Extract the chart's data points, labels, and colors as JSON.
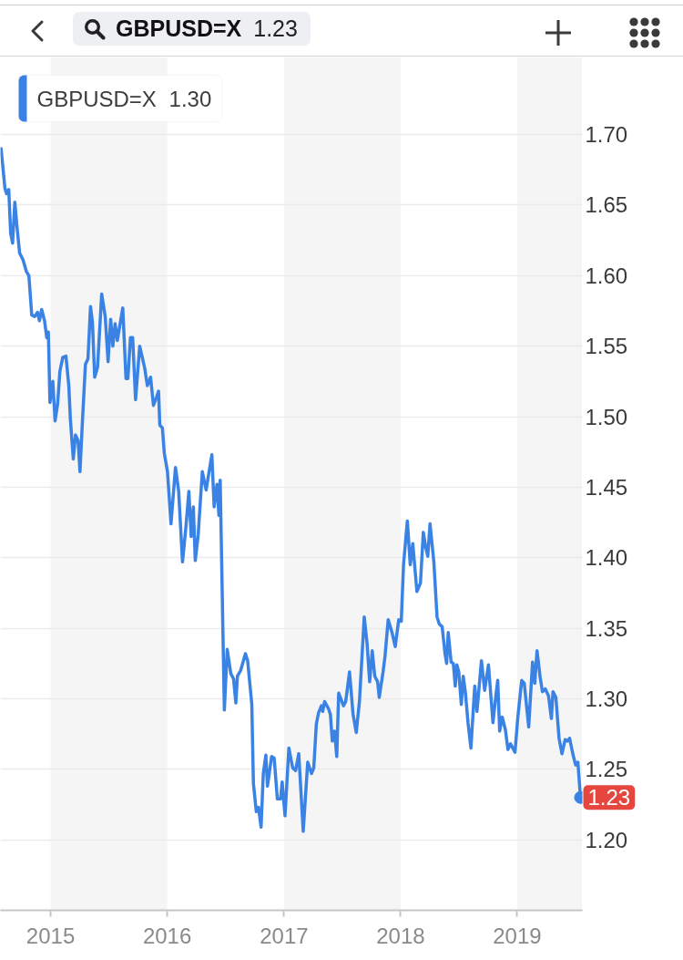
{
  "chart_data": {
    "type": "line",
    "title": "GBPUSD=X",
    "subtitle": "1.23",
    "x": [
      "2014-07-30",
      "2014-08-11",
      "2014-08-16",
      "2014-08-23",
      "2014-08-29",
      "2014-09-04",
      "2014-09-11",
      "2014-09-18",
      "2014-09-26",
      "2014-10-07",
      "2014-10-17",
      "2014-10-25",
      "2014-11-03",
      "2014-11-12",
      "2014-11-21",
      "2014-11-27",
      "2014-12-04",
      "2014-12-13",
      "2014-12-20",
      "2014-12-25",
      "2014-12-30",
      "2015-01-08",
      "2015-01-15",
      "2015-01-23",
      "2015-01-30",
      "2015-02-08",
      "2015-02-18",
      "2015-02-27",
      "2015-03-04",
      "2015-03-13",
      "2015-03-20",
      "2015-03-28",
      "2015-04-03",
      "2015-04-11",
      "2015-04-20",
      "2015-04-28",
      "2015-05-06",
      "2015-05-12",
      "2015-05-19",
      "2015-05-28",
      "2015-06-10",
      "2015-06-21",
      "2015-06-30",
      "2015-07-08",
      "2015-07-15",
      "2015-07-22",
      "2015-07-29",
      "2015-08-06",
      "2015-08-15",
      "2015-08-25",
      "2015-08-31",
      "2015-09-08",
      "2015-09-15",
      "2015-09-24",
      "2015-10-07",
      "2015-10-23",
      "2015-10-31",
      "2015-11-10",
      "2015-11-19",
      "2015-11-29",
      "2015-12-05",
      "2015-12-09",
      "2015-12-17",
      "2015-12-23",
      "2016-01-02",
      "2016-01-13",
      "2016-01-27",
      "2016-02-06",
      "2016-02-18",
      "2016-02-28",
      "2016-03-09",
      "2016-03-16",
      "2016-03-23",
      "2016-03-29",
      "2016-04-07",
      "2016-04-20",
      "2016-05-02",
      "2016-05-12",
      "2016-05-20",
      "2016-05-27",
      "2016-06-05",
      "2016-06-11",
      "2016-06-15",
      "2016-06-28",
      "2016-07-07",
      "2016-07-18",
      "2016-07-27",
      "2016-08-03",
      "2016-08-08",
      "2016-08-18",
      "2016-09-02",
      "2016-09-09",
      "2016-09-22",
      "2016-09-27",
      "2016-10-06",
      "2016-10-13",
      "2016-10-21",
      "2016-10-28",
      "2016-11-05",
      "2016-11-10",
      "2016-11-23",
      "2016-12-01",
      "2016-12-11",
      "2016-12-21",
      "2016-12-26",
      "2017-01-04",
      "2017-01-16",
      "2017-01-28",
      "2017-02-06",
      "2017-02-16",
      "2017-03-02",
      "2017-03-16",
      "2017-03-28",
      "2017-04-04",
      "2017-04-12",
      "2017-04-19",
      "2017-04-28",
      "2017-05-02",
      "2017-05-08",
      "2017-05-20",
      "2017-05-26",
      "2017-06-01",
      "2017-06-08",
      "2017-06-15",
      "2017-06-21",
      "2017-07-06",
      "2017-07-13",
      "2017-07-25",
      "2017-08-05",
      "2017-08-15",
      "2017-08-25",
      "2017-09-09",
      "2017-09-18",
      "2017-09-26",
      "2017-10-04",
      "2017-10-12",
      "2017-10-21",
      "2017-10-26",
      "2017-11-07",
      "2017-11-13",
      "2017-11-23",
      "2017-12-05",
      "2017-12-15",
      "2017-12-26",
      "2018-01-03",
      "2018-01-10",
      "2018-01-22",
      "2018-01-31",
      "2018-02-08",
      "2018-02-21",
      "2018-03-04",
      "2018-03-13",
      "2018-03-20",
      "2018-03-27",
      "2018-04-03",
      "2018-04-15",
      "2018-04-25",
      "2018-05-02",
      "2018-05-11",
      "2018-05-20",
      "2018-05-25",
      "2018-05-30",
      "2018-06-08",
      "2018-06-15",
      "2018-06-21",
      "2018-06-26",
      "2018-07-02",
      "2018-07-10",
      "2018-07-16",
      "2018-07-23",
      "2018-07-31",
      "2018-08-09",
      "2018-08-21",
      "2018-08-28",
      "2018-09-11",
      "2018-09-21",
      "2018-10-03",
      "2018-10-17",
      "2018-10-26",
      "2018-11-01",
      "2018-11-07",
      "2018-11-15",
      "2018-11-25",
      "2018-12-03",
      "2018-12-11",
      "2018-12-25",
      "2019-01-03",
      "2019-01-15",
      "2019-01-23",
      "2019-02-06",
      "2019-02-18",
      "2019-02-25",
      "2019-03-04",
      "2019-03-14",
      "2019-03-21",
      "2019-03-30",
      "2019-04-09",
      "2019-04-18",
      "2019-04-23",
      "2019-05-02",
      "2019-05-12",
      "2019-05-21",
      "2019-05-31",
      "2019-06-08",
      "2019-06-14",
      "2019-06-24",
      "2019-07-03",
      "2019-07-10",
      "2019-07-18"
    ],
    "series": [
      {
        "name": "GBPUSD=X",
        "color": "#3a83e5",
        "values": [
          1.69,
          1.662,
          1.658,
          1.661,
          1.63,
          1.623,
          1.652,
          1.634,
          1.616,
          1.611,
          1.603,
          1.6,
          1.572,
          1.571,
          1.574,
          1.568,
          1.576,
          1.568,
          1.556,
          1.56,
          1.51,
          1.525,
          1.497,
          1.509,
          1.532,
          1.542,
          1.543,
          1.522,
          1.498,
          1.47,
          1.487,
          1.483,
          1.461,
          1.498,
          1.537,
          1.541,
          1.578,
          1.567,
          1.528,
          1.535,
          1.587,
          1.571,
          1.539,
          1.569,
          1.55,
          1.566,
          1.554,
          1.565,
          1.577,
          1.527,
          1.527,
          1.556,
          1.556,
          1.512,
          1.55,
          1.534,
          1.522,
          1.528,
          1.508,
          1.514,
          1.518,
          1.494,
          1.492,
          1.474,
          1.461,
          1.424,
          1.464,
          1.447,
          1.397,
          1.42,
          1.447,
          1.415,
          1.436,
          1.398,
          1.416,
          1.461,
          1.448,
          1.462,
          1.473,
          1.436,
          1.452,
          1.43,
          1.455,
          1.292,
          1.335,
          1.318,
          1.314,
          1.297,
          1.316,
          1.32,
          1.332,
          1.327,
          1.296,
          1.24,
          1.22,
          1.223,
          1.209,
          1.247,
          1.26,
          1.238,
          1.259,
          1.258,
          1.229,
          1.229,
          1.241,
          1.217,
          1.265,
          1.251,
          1.249,
          1.261,
          1.206,
          1.255,
          1.247,
          1.251,
          1.282,
          1.29,
          1.295,
          1.291,
          1.298,
          1.293,
          1.289,
          1.27,
          1.277,
          1.259,
          1.304,
          1.295,
          1.298,
          1.319,
          1.289,
          1.276,
          1.298,
          1.358,
          1.339,
          1.312,
          1.334,
          1.316,
          1.312,
          1.301,
          1.319,
          1.33,
          1.356,
          1.347,
          1.337,
          1.356,
          1.355,
          1.395,
          1.426,
          1.395,
          1.41,
          1.376,
          1.382,
          1.418,
          1.408,
          1.401,
          1.424,
          1.397,
          1.358,
          1.353,
          1.351,
          1.332,
          1.325,
          1.347,
          1.326,
          1.325,
          1.309,
          1.324,
          1.319,
          1.296,
          1.316,
          1.304,
          1.283,
          1.265,
          1.309,
          1.291,
          1.327,
          1.306,
          1.324,
          1.283,
          1.302,
          1.313,
          1.277,
          1.287,
          1.278,
          1.264,
          1.268,
          1.262,
          1.287,
          1.313,
          1.311,
          1.28,
          1.326,
          1.311,
          1.334,
          1.315,
          1.305,
          1.307,
          1.302,
          1.286,
          1.305,
          1.301,
          1.272,
          1.261,
          1.271,
          1.27,
          1.272,
          1.261,
          1.253,
          1.255,
          1.23
        ]
      }
    ],
    "xlim": [
      "2014-07-28",
      "2019-07-24"
    ],
    "xticks": [
      "2015",
      "2016",
      "2017",
      "2018",
      "2019"
    ],
    "ylim": [
      1.15,
      1.755
    ],
    "yticks": [
      {
        "value": 1.2,
        "label": "1.20"
      },
      1.25,
      {
        "value": 1.3,
        "label": "1.30"
      },
      1.35,
      {
        "value": 1.4,
        "label": "1.40"
      },
      1.45,
      {
        "value": 1.5,
        "label": "1.50"
      },
      1.55,
      {
        "value": 1.6,
        "label": "1.60"
      },
      1.65,
      {
        "value": 1.7,
        "label": "1.70"
      }
    ],
    "grid": "y",
    "legend": "top left",
    "bands": [
      {
        "axis": "x",
        "from": "2015",
        "to": "2016",
        "color": "#f5f5f6"
      },
      {
        "axis": "x",
        "from": "2017",
        "to": "2018",
        "color": "#f5f5f6"
      },
      {
        "axis": "x",
        "from": "2019",
        "to": "2019-07-24",
        "color": "#f5f5f6"
      }
    ],
    "annotations": [
      {
        "text": "1.23",
        "x": "2019-07-18",
        "y": 1.23
      },
      "1.30"
    ]
  }
}
